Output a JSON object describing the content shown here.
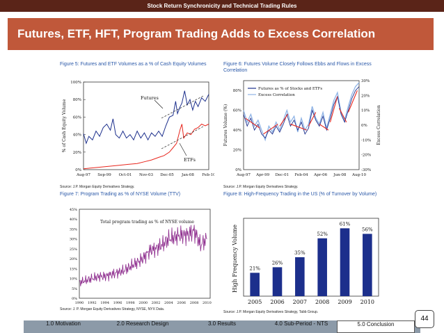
{
  "header": {
    "top_title": "Stock Return Synchronicity and Technical Trading Rules",
    "slide_title": "Futures, ETF, HFT, Program Trading Adds to Excess Correlation"
  },
  "page_number": "44",
  "nav": [
    {
      "label": "1.0 Motivation",
      "active": false
    },
    {
      "label": "2.0 Research Design",
      "active": false
    },
    {
      "label": "3.0 Results",
      "active": false
    },
    {
      "label": "4.0 Sub-Period - NTS",
      "active": false
    },
    {
      "label": "5.0 Conclusion",
      "active": true
    }
  ],
  "colors": {
    "blue": "#1c2f8c",
    "red": "#e8251c",
    "light_blue": "#8fb4e6",
    "caption": "#2a58a8"
  },
  "chart_data": [
    {
      "type": "line",
      "title": "Figure 5: Futures and ETF Volumes as a % of Cash Equity Volumes",
      "ylabel": "% of Cash Equity Volume",
      "x_ticks": [
        "Aug-97",
        "Sep-99",
        "Oct-01",
        "Nov-03",
        "Dec-05",
        "Jan-08",
        "Feb-10"
      ],
      "y_ticks": [
        "0%",
        "20%",
        "40%",
        "60%",
        "80%",
        "100%"
      ],
      "ylim": [
        0,
        100
      ],
      "annotations": [
        "Futures",
        "ETFs"
      ],
      "source": "Source: J.P. Morgan Equity Derivatives Strategy.",
      "series": [
        {
          "name": "Futures",
          "color": "#1c2f8c",
          "values": [
            [
              0,
              41
            ],
            [
              0.3,
              30
            ],
            [
              0.6,
              38
            ],
            [
              1,
              34
            ],
            [
              1.4,
              44
            ],
            [
              1.8,
              38
            ],
            [
              2.2,
              48
            ],
            [
              2.6,
              52
            ],
            [
              3,
              45
            ],
            [
              3.3,
              58
            ],
            [
              3.6,
              40
            ],
            [
              4,
              36
            ],
            [
              4.4,
              44
            ],
            [
              4.8,
              36
            ],
            [
              5.2,
              40
            ],
            [
              5.6,
              34
            ],
            [
              6,
              44
            ],
            [
              6.4,
              36
            ],
            [
              6.8,
              42
            ],
            [
              7.2,
              34
            ],
            [
              7.6,
              42
            ],
            [
              8,
              38
            ],
            [
              8.4,
              44
            ],
            [
              8.8,
              38
            ],
            [
              9.2,
              50
            ],
            [
              9.6,
              60
            ],
            [
              10,
              62
            ],
            [
              10.3,
              78
            ],
            [
              10.5,
              64
            ],
            [
              10.8,
              72
            ],
            [
              11,
              76
            ],
            [
              11.3,
              90
            ],
            [
              11.6,
              74
            ],
            [
              11.9,
              80
            ],
            [
              12.2,
              68
            ],
            [
              12.5,
              78
            ],
            [
              12.8,
              72
            ],
            [
              13.2,
              82
            ],
            [
              13.6,
              78
            ],
            [
              14,
              86
            ]
          ]
        },
        {
          "name": "ETFs",
          "color": "#e8251c",
          "values": [
            [
              0,
              1
            ],
            [
              1,
              2
            ],
            [
              2,
              3
            ],
            [
              3,
              4
            ],
            [
              4,
              5
            ],
            [
              5,
              6
            ],
            [
              6,
              7
            ],
            [
              6.8,
              9
            ],
            [
              7.6,
              11
            ],
            [
              8.4,
              14
            ],
            [
              9,
              16
            ],
            [
              9.6,
              20
            ],
            [
              10,
              25
            ],
            [
              10.4,
              30
            ],
            [
              10.8,
              46
            ],
            [
              11,
              52
            ],
            [
              11.2,
              36
            ],
            [
              11.6,
              42
            ],
            [
              12,
              40
            ],
            [
              12.4,
              46
            ],
            [
              12.8,
              48
            ],
            [
              13.2,
              52
            ],
            [
              13.6,
              50
            ],
            [
              14,
              52
            ]
          ]
        }
      ]
    },
    {
      "type": "line",
      "title": "Figure 6: Futures Volume Closely Follows Ebbs and Flows in Excess Correlation",
      "ylabel": "Futures Volume (%)",
      "y2label": "Excess Correlation",
      "x_ticks": [
        "Aug-97",
        "Apr-99",
        "Dec-01",
        "Feb-04",
        "Apr-06",
        "Jun-08",
        "Aug-10"
      ],
      "y_ticks": [
        "0%",
        "20%",
        "40%",
        "60%",
        "80%"
      ],
      "y2_ticks": [
        "-30%",
        "-20%",
        "-10%",
        "0%",
        "10%",
        "20%",
        "30%"
      ],
      "ylim": [
        0,
        90
      ],
      "y2lim": [
        -30,
        30
      ],
      "legend": [
        "Futures as % of Stocks and ETFs",
        "Excess Correlation"
      ],
      "legend_position": "top-left",
      "source": "Source: J.P. Morgan Equity Derivatives Strategy.",
      "series": [
        {
          "name": "Futures as % of Stocks and ETFs",
          "color": "#1c2f8c",
          "values": [
            [
              0,
              56
            ],
            [
              0.4,
              44
            ],
            [
              0.8,
              52
            ],
            [
              1.2,
              40
            ],
            [
              1.6,
              46
            ],
            [
              2,
              36
            ],
            [
              2.4,
              32
            ],
            [
              2.8,
              40
            ],
            [
              3.2,
              36
            ],
            [
              3.6,
              44
            ],
            [
              4,
              38
            ],
            [
              4.4,
              46
            ],
            [
              4.8,
              56
            ],
            [
              5.2,
              44
            ],
            [
              5.6,
              50
            ],
            [
              6,
              40
            ],
            [
              6.4,
              48
            ],
            [
              6.8,
              36
            ],
            [
              7.2,
              42
            ],
            [
              7.6,
              60
            ],
            [
              8,
              50
            ],
            [
              8.4,
              44
            ],
            [
              8.8,
              54
            ],
            [
              9.2,
              40
            ],
            [
              9.6,
              52
            ],
            [
              10,
              66
            ],
            [
              10.4,
              74
            ],
            [
              10.8,
              56
            ],
            [
              11.2,
              48
            ],
            [
              11.6,
              60
            ],
            [
              12,
              72
            ],
            [
              12.4,
              80
            ],
            [
              12.8,
              84
            ]
          ]
        },
        {
          "name": "Excess Correlation",
          "color": "#8fb4e6",
          "values": [
            [
              0,
              60
            ],
            [
              0.4,
              48
            ],
            [
              0.8,
              56
            ],
            [
              1.2,
              44
            ],
            [
              1.6,
              50
            ],
            [
              2,
              40
            ],
            [
              2.4,
              30
            ],
            [
              2.8,
              44
            ],
            [
              3.2,
              38
            ],
            [
              3.6,
              48
            ],
            [
              4,
              40
            ],
            [
              4.4,
              50
            ],
            [
              4.8,
              60
            ],
            [
              5.2,
              48
            ],
            [
              5.6,
              54
            ],
            [
              6,
              38
            ],
            [
              6.4,
              52
            ],
            [
              6.8,
              40
            ],
            [
              7.2,
              46
            ],
            [
              7.6,
              64
            ],
            [
              8,
              52
            ],
            [
              8.4,
              46
            ],
            [
              8.8,
              58
            ],
            [
              9.2,
              42
            ],
            [
              9.6,
              56
            ],
            [
              10,
              70
            ],
            [
              10.4,
              78
            ],
            [
              10.8,
              58
            ],
            [
              11.2,
              50
            ],
            [
              11.6,
              64
            ],
            [
              12,
              76
            ],
            [
              12.4,
              84
            ],
            [
              12.8,
              88
            ]
          ]
        }
      ]
    },
    {
      "type": "line",
      "title": "Figure 7: Program Trading as % of NYSE Volume (TTV)",
      "series_label": "Total program trading as % of NYSE volume",
      "x_ticks": [
        "1990",
        "1992",
        "1994",
        "1996",
        "1998",
        "2000",
        "2002",
        "2004",
        "2006",
        "2008",
        "2010"
      ],
      "y_ticks": [
        "0%",
        "5%",
        "10%",
        "15%",
        "20%",
        "25%",
        "30%",
        "35%",
        "40%",
        "45%"
      ],
      "ylim": [
        0,
        45
      ],
      "source": "Source: J. P. Morgan Equity Derivatives Strategy, NYSE, NYX Data.",
      "series": [
        {
          "name": "Total program trading as % of NYSE volume",
          "color": "#8c2a8c",
          "values": [
            [
              1990,
              8
            ],
            [
              1991,
              9
            ],
            [
              1992,
              10
            ],
            [
              1993,
              11
            ],
            [
              1994,
              11
            ],
            [
              1995,
              12
            ],
            [
              1996,
              13
            ],
            [
              1997,
              14
            ],
            [
              1998,
              16
            ],
            [
              1999,
              18
            ],
            [
              2000,
              20
            ],
            [
              2001,
              24
            ],
            [
              2002,
              25
            ],
            [
              2003,
              27
            ],
            [
              2004,
              30
            ],
            [
              2005,
              31
            ],
            [
              2006,
              32
            ],
            [
              2007,
              32
            ],
            [
              2008,
              34
            ],
            [
              2009,
              27
            ],
            [
              2010,
              30
            ]
          ]
        }
      ]
    },
    {
      "type": "bar",
      "title": "Figure 8: High-Frequency Trading in the US (% of Turnover by Volume)",
      "ylabel": "High Frequency Volume",
      "categories": [
        "2005",
        "2006",
        "2007",
        "2008",
        "2009",
        "2010"
      ],
      "values": [
        21,
        26,
        35,
        52,
        61,
        56
      ],
      "value_labels": [
        "21%",
        "26%",
        "35%",
        "52%",
        "61%",
        "56%"
      ],
      "ylim": [
        0,
        70
      ],
      "color": "#1c2f8c",
      "source": "Source: J.P. Morgan Equity Derivatives Strategy, Tabb Group."
    }
  ]
}
